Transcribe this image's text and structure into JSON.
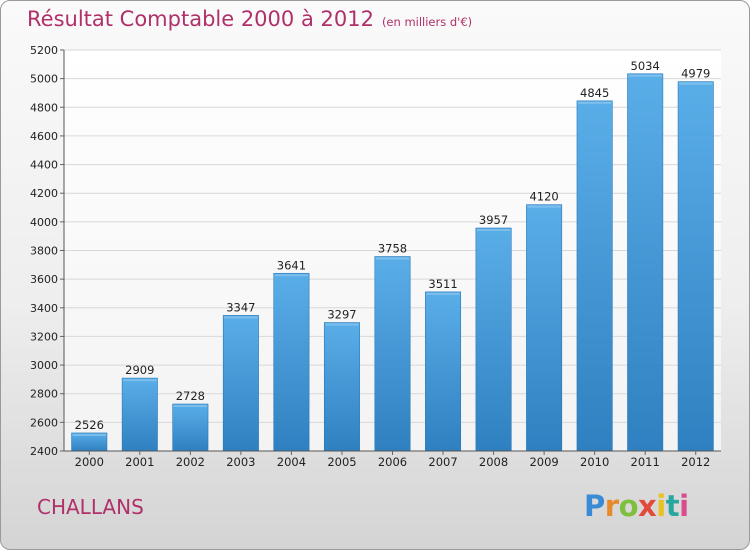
{
  "title": "Résultat Comptable 2000 à 2012",
  "subtitle": "(en milliers d'€)",
  "city": "CHALLANS",
  "logo": "Proxiti",
  "colors": {
    "title": "#b0306a",
    "bar_light": "#5aaee8",
    "bar_dark": "#2f80c0",
    "logo_letters": [
      "#3a8bd6",
      "#e8892a",
      "#7fbf3f",
      "#e24b3b",
      "#e8c21f",
      "#2aa6a0",
      "#d94d8e"
    ]
  },
  "chart_data": {
    "type": "bar",
    "title": "Résultat Comptable 2000 à 2012",
    "subtitle": "(en milliers d'€)",
    "xlabel": "",
    "ylabel": "",
    "categories": [
      "2000",
      "2001",
      "2002",
      "2003",
      "2004",
      "2005",
      "2006",
      "2007",
      "2008",
      "2009",
      "2010",
      "2011",
      "2012"
    ],
    "values": [
      2526,
      2909,
      2728,
      3347,
      3641,
      3297,
      3758,
      3511,
      3957,
      4120,
      4845,
      5034,
      4979
    ],
    "ylim": [
      2400,
      5200
    ],
    "yticks": [
      2400,
      2600,
      2800,
      3000,
      3200,
      3400,
      3600,
      3800,
      4000,
      4200,
      4400,
      4600,
      4800,
      5000,
      5200
    ],
    "grid": true,
    "data_labels": true
  }
}
